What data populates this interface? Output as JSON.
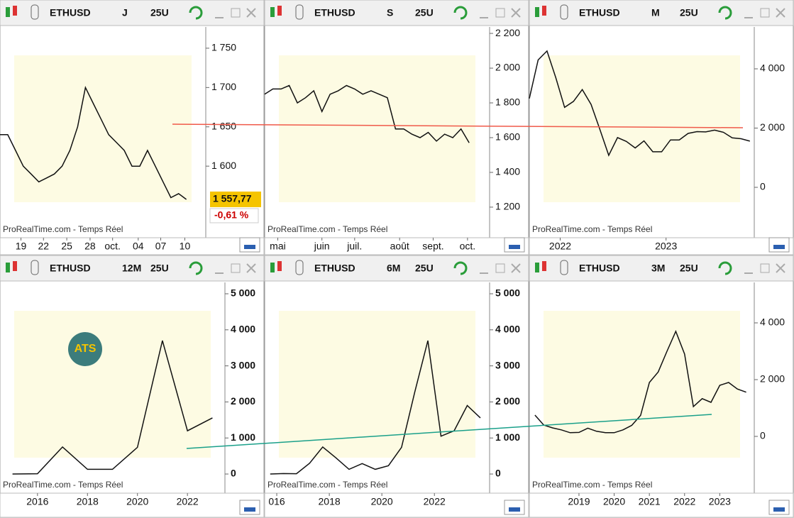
{
  "chart_data": [
    {
      "type": "line",
      "symbol": "ETHUSD",
      "timeframe": "J",
      "units": "25U",
      "watermark": "ProRealTime.com - Temps Réel",
      "price_label": "1 557,77",
      "change_label": "-0,61 %",
      "x": [
        0,
        1,
        2,
        3,
        4,
        5,
        6,
        7,
        8,
        9,
        10,
        11,
        12,
        13,
        14,
        15,
        16,
        17,
        18,
        19,
        20,
        21,
        22,
        23,
        24
      ],
      "series": [
        {
          "color": "#111111",
          "values": [
            1640,
            1640,
            1620,
            1600,
            1590,
            1580,
            1585,
            1590,
            1600,
            1620,
            1650,
            1700,
            1680,
            1660,
            1640,
            1630,
            1620,
            1600,
            1600,
            1620,
            1600,
            1580,
            1560,
            1565,
            1557.77
          ]
        }
      ],
      "xlim": [
        0,
        26.5
      ],
      "xticks": [
        {
          "value": 2.7,
          "label": "19"
        },
        {
          "value": 5.6,
          "label": "22"
        },
        {
          "value": 8.6,
          "label": "25"
        },
        {
          "value": 11.6,
          "label": "28"
        },
        {
          "value": 14.5,
          "label": "oct."
        },
        {
          "value": 17.8,
          "label": "04"
        },
        {
          "value": 20.7,
          "label": "07"
        },
        {
          "value": 23.8,
          "label": "10"
        }
      ],
      "ylim": [
        1509,
        1777
      ],
      "yticks": [
        {
          "value": 1600,
          "label": "1 600"
        },
        {
          "value": 1650,
          "label": "1 650"
        },
        {
          "value": 1700,
          "label": "1 700"
        },
        {
          "value": 1750,
          "label": "1 750"
        }
      ]
    },
    {
      "type": "line",
      "symbol": "ETHUSD",
      "timeframe": "S",
      "units": "25U",
      "watermark": "ProRealTime.com - Temps Réel",
      "x": [
        0,
        1,
        2,
        3,
        4,
        5,
        6,
        7,
        8,
        9,
        10,
        11,
        12,
        13,
        14,
        15,
        16,
        17,
        18,
        19,
        20,
        21,
        22,
        23,
        24,
        25
      ],
      "series": [
        {
          "color": "#111111",
          "values": [
            1850,
            1880,
            1880,
            1900,
            1800,
            1830,
            1870,
            1750,
            1850,
            1870,
            1900,
            1880,
            1850,
            1870,
            1850,
            1830,
            1650,
            1650,
            1620,
            1600,
            1630,
            1580,
            1620,
            1600,
            1650,
            1570
          ]
        }
      ],
      "xlim": [
        0,
        27.5
      ],
      "xticks": [
        {
          "value": 1.6,
          "label": "mai"
        },
        {
          "value": 7,
          "label": "juin"
        },
        {
          "value": 11,
          "label": "juil."
        },
        {
          "value": 16.5,
          "label": "août"
        },
        {
          "value": 20.6,
          "label": "sept."
        },
        {
          "value": 24.8,
          "label": "oct."
        }
      ],
      "ylim": [
        1024,
        2237
      ],
      "yticks": [
        {
          "value": 1200,
          "label": "1 200"
        },
        {
          "value": 1400,
          "label": "1 400"
        },
        {
          "value": 1600,
          "label": "1 600"
        },
        {
          "value": 1800,
          "label": "1 800"
        },
        {
          "value": 2000,
          "label": "2 000"
        },
        {
          "value": 2200,
          "label": "2 200"
        }
      ]
    },
    {
      "type": "line",
      "symbol": "ETHUSD",
      "timeframe": "M",
      "units": "25U",
      "watermark": "ProRealTime.com - Temps Réel",
      "x": [
        0,
        1,
        2,
        3,
        4,
        5,
        6,
        7,
        8,
        9,
        10,
        11,
        12,
        13,
        14,
        15,
        16,
        17,
        18,
        19,
        20,
        21,
        22,
        23,
        24,
        25
      ],
      "series": [
        {
          "color": "#111111",
          "values": [
            3000,
            4300,
            4600,
            3700,
            2700,
            2900,
            3300,
            2800,
            1950,
            1080,
            1680,
            1550,
            1330,
            1570,
            1200,
            1200,
            1600,
            1600,
            1820,
            1880,
            1870,
            1930,
            1860,
            1670,
            1640,
            1560
          ]
        }
      ],
      "xlim": [
        0,
        25.5
      ],
      "xticks": [
        {
          "value": 3.5,
          "label": "2022"
        },
        {
          "value": 15.5,
          "label": "2023"
        }
      ],
      "ylim": [
        -1700,
        5413
      ],
      "yticks": [
        0,
        {
          "value": 2000,
          "label": "2 000"
        },
        {
          "value": 4000,
          "label": "4 000"
        }
      ]
    },
    {
      "type": "line",
      "symbol": "ETHUSD",
      "timeframe": "12M",
      "units": "25U",
      "watermark": "ProRealTime.com - Temps Réel",
      "logo": "ATS",
      "x": [
        2015,
        2016,
        2017,
        2018,
        2019,
        2020,
        2021,
        2022,
        2023
      ],
      "series": [
        {
          "color": "#111111",
          "values": [
            1,
            8,
            750,
            130,
            130,
            740,
            3700,
            1200,
            1557
          ]
        }
      ],
      "xlim": [
        2014.5,
        2023.5
      ],
      "xticks": [
        2016,
        2018,
        2020,
        2022
      ],
      "ylim": [
        -531,
        5315
      ],
      "yticks": [
        0,
        {
          "value": 1000,
          "label": "1 000"
        },
        {
          "value": 2000,
          "label": "2 000"
        },
        {
          "value": 3000,
          "label": "3 000"
        },
        {
          "value": 4000,
          "label": "4 000"
        },
        {
          "value": 5000,
          "label": "5 000"
        }
      ]
    },
    {
      "type": "line",
      "symbol": "ETHUSD",
      "timeframe": "6M",
      "units": "25U",
      "watermark": "ProRealTime.com - Temps Réel",
      "x": [
        2015.75,
        2016.25,
        2016.75,
        2017.25,
        2017.75,
        2018.25,
        2018.75,
        2019.25,
        2019.75,
        2020.25,
        2020.75,
        2021.25,
        2021.75,
        2022.25,
        2022.75,
        2023.25,
        2023.75
      ],
      "series": [
        {
          "color": "#111111",
          "values": [
            1,
            12,
            8,
            300,
            750,
            450,
            130,
            290,
            130,
            230,
            740,
            2270,
            3700,
            1050,
            1200,
            1900,
            1557
          ]
        }
      ],
      "xlim": [
        2015.54,
        2024.1
      ],
      "xticks": [
        {
          "value": 2016,
          "label": "016"
        },
        2018,
        2020,
        2022
      ],
      "ylim": [
        -531,
        5315
      ],
      "yticks": [
        0,
        {
          "value": 1000,
          "label": "1 000"
        },
        {
          "value": 2000,
          "label": "2 000"
        },
        {
          "value": 3000,
          "label": "3 000"
        },
        {
          "value": 4000,
          "label": "4 000"
        },
        {
          "value": 5000,
          "label": "5 000"
        }
      ]
    },
    {
      "type": "line",
      "symbol": "ETHUSD",
      "timeframe": "3M",
      "units": "25U",
      "watermark": "ProRealTime.com - Temps Réel",
      "x": [
        2017.75,
        2018,
        2018.25,
        2018.5,
        2018.75,
        2019,
        2019.25,
        2019.5,
        2019.75,
        2020,
        2020.25,
        2020.5,
        2020.75,
        2021,
        2021.25,
        2021.5,
        2021.75,
        2022,
        2022.25,
        2022.5,
        2022.75,
        2023,
        2023.25,
        2023.5,
        2023.75
      ],
      "series": [
        {
          "color": "#111111",
          "values": [
            750,
            400,
            300,
            230,
            130,
            140,
            290,
            180,
            130,
            130,
            230,
            390,
            740,
            1900,
            2270,
            3000,
            3700,
            2900,
            1050,
            1330,
            1200,
            1800,
            1900,
            1670,
            1557
          ]
        }
      ],
      "xlim": [
        2017.59,
        2023.98
      ],
      "xticks": [
        2019,
        2020,
        2021,
        2022,
        2023
      ],
      "ylim": [
        -2000,
        5425
      ],
      "yticks": [
        0,
        {
          "value": 2000,
          "label": "2 000"
        },
        {
          "value": 4000,
          "label": "4 000"
        }
      ]
    }
  ]
}
